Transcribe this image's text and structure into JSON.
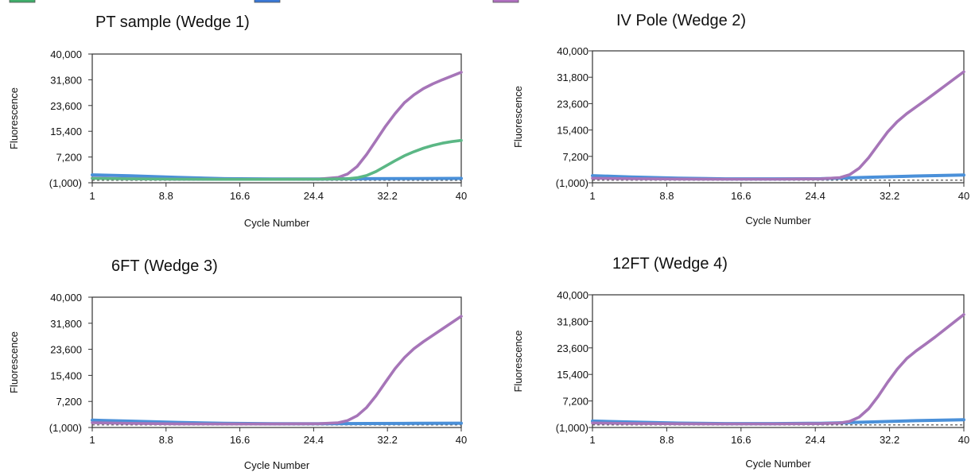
{
  "legend_swatches": [
    {
      "color": "#3fae6b"
    },
    {
      "color": "#3a78d6"
    },
    {
      "color": "#b070c0"
    }
  ],
  "chart_data": [
    {
      "type": "line",
      "title": "PT sample (Wedge 1)",
      "xlabel": "Cycle Number",
      "ylabel": "Fluorescence",
      "xticks": [
        "1",
        "8.8",
        "16.6",
        "24.4",
        "32.2",
        "40"
      ],
      "yticks": [
        "40,000",
        "31,800",
        "23,600",
        "15,400",
        "7,200",
        "(1,000)"
      ],
      "xlim": [
        1,
        40
      ],
      "ylim": [
        -1000,
        40000
      ],
      "series": [
        {
          "color": "#a675b8",
          "x": [
            1,
            5,
            10,
            15,
            20,
            25,
            27,
            28,
            29,
            30,
            31,
            32,
            33,
            34,
            35,
            36,
            37,
            38,
            39,
            40
          ],
          "y": [
            500,
            300,
            150,
            100,
            100,
            200,
            700,
            1800,
            4200,
            8000,
            12500,
            17000,
            21000,
            24500,
            27000,
            29000,
            30500,
            31800,
            33000,
            34200
          ]
        },
        {
          "color": "#5bb785",
          "x": [
            1,
            5,
            10,
            15,
            20,
            25,
            28,
            29,
            30,
            31,
            32,
            33,
            34,
            35,
            36,
            37,
            38,
            39,
            40
          ],
          "y": [
            400,
            250,
            150,
            100,
            100,
            150,
            300,
            600,
            1300,
            2600,
            4300,
            6000,
            7600,
            8900,
            10000,
            10900,
            11600,
            12100,
            12500
          ]
        },
        {
          "color": "#4a90d9",
          "x": [
            1,
            5,
            10,
            15,
            20,
            25,
            30,
            35,
            40
          ],
          "y": [
            1500,
            1200,
            700,
            300,
            200,
            200,
            300,
            350,
            400
          ]
        }
      ]
    },
    {
      "type": "line",
      "title": "IV Pole (Wedge 2)",
      "xlabel": "Cycle Number",
      "ylabel": "Fluorescence",
      "xticks": [
        "1",
        "8.8",
        "16.6",
        "24.4",
        "32.2",
        "40"
      ],
      "yticks": [
        "40,000",
        "31,800",
        "23,600",
        "15,400",
        "7,200",
        "(1,000)"
      ],
      "xlim": [
        1,
        40
      ],
      "ylim": [
        -1000,
        40000
      ],
      "series": [
        {
          "color": "#a675b8",
          "x": [
            1,
            5,
            10,
            15,
            20,
            25,
            27,
            28,
            29,
            30,
            31,
            32,
            33,
            34,
            35,
            36,
            37,
            38,
            39,
            40
          ],
          "y": [
            400,
            250,
            150,
            100,
            100,
            200,
            600,
            1500,
            3500,
            6800,
            10800,
            14800,
            18000,
            20500,
            22600,
            24700,
            26900,
            29100,
            31300,
            33500
          ]
        },
        {
          "color": "#4a90d9",
          "x": [
            1,
            5,
            10,
            15,
            20,
            25,
            30,
            35,
            40
          ],
          "y": [
            1200,
            800,
            400,
            200,
            200,
            250,
            700,
            1100,
            1400
          ]
        }
      ]
    },
    {
      "type": "line",
      "title": "6FT (Wedge 3)",
      "xlabel": "Cycle Number",
      "ylabel": "Fluorescence",
      "xticks": [
        "1",
        "8.8",
        "16.6",
        "24.4",
        "32.2",
        "40"
      ],
      "yticks": [
        "40,000",
        "31,800",
        "23,600",
        "15,400",
        "7,200",
        "(1,000)"
      ],
      "xlim": [
        1,
        40
      ],
      "ylim": [
        -1000,
        40000
      ],
      "series": [
        {
          "color": "#a675b8",
          "x": [
            1,
            5,
            10,
            15,
            20,
            25,
            27,
            28,
            29,
            30,
            31,
            32,
            33,
            34,
            35,
            36,
            37,
            38,
            39,
            40
          ],
          "y": [
            500,
            300,
            150,
            100,
            100,
            200,
            500,
            1200,
            2700,
            5300,
            9000,
            13300,
            17500,
            21000,
            23800,
            26000,
            28000,
            30000,
            32000,
            34000
          ]
        },
        {
          "color": "#4a90d9",
          "x": [
            1,
            5,
            10,
            15,
            20,
            25,
            30,
            35,
            40
          ],
          "y": [
            1300,
            1000,
            600,
            300,
            200,
            200,
            250,
            300,
            350
          ]
        }
      ]
    },
    {
      "type": "line",
      "title": "12FT (Wedge 4)",
      "xlabel": "Cycle Number",
      "ylabel": "Fluorescence",
      "xticks": [
        "1",
        "8.8",
        "16.6",
        "24.4",
        "32.2",
        "40"
      ],
      "yticks": [
        "40,000",
        "31,800",
        "23,600",
        "15,400",
        "7,200",
        "(1,000)"
      ],
      "xlim": [
        1,
        40
      ],
      "ylim": [
        -1000,
        40000
      ],
      "series": [
        {
          "color": "#a675b8",
          "x": [
            1,
            5,
            10,
            15,
            20,
            25,
            27,
            28,
            29,
            30,
            31,
            32,
            33,
            34,
            35,
            36,
            37,
            38,
            39,
            40
          ],
          "y": [
            400,
            250,
            150,
            100,
            100,
            200,
            400,
            900,
            2200,
            4800,
            8600,
            13000,
            17000,
            20300,
            22700,
            24800,
            27000,
            29300,
            31600,
            33900
          ]
        },
        {
          "color": "#4a90d9",
          "x": [
            1,
            5,
            10,
            15,
            20,
            25,
            30,
            35,
            40
          ],
          "y": [
            1000,
            700,
            350,
            200,
            200,
            300,
            700,
            1100,
            1400
          ]
        }
      ]
    }
  ]
}
